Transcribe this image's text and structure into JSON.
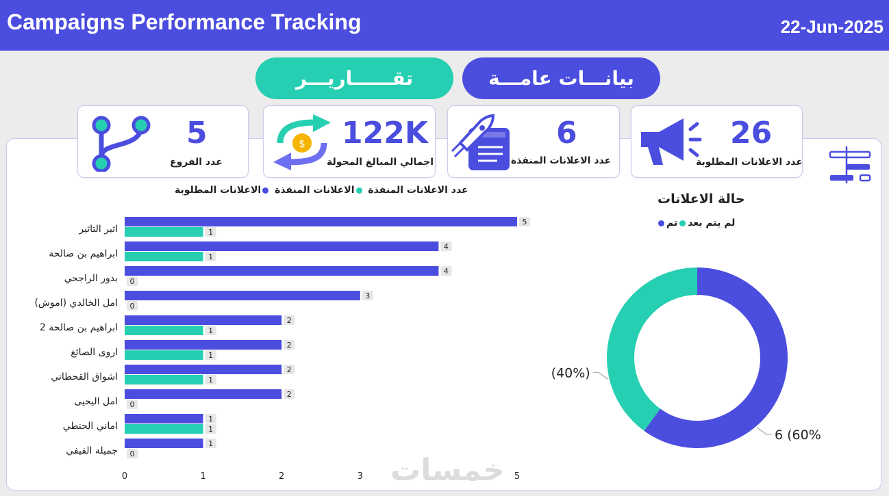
{
  "header": {
    "title": "Campaigns Performance Tracking",
    "date": "22-Jun-2025"
  },
  "nav": {
    "reports_label": "تقــــــاريـــر",
    "overview_label": "بيانـــات عامـــة"
  },
  "kpis": {
    "branches": {
      "value": "5",
      "label": "عدد الفروع"
    },
    "amounts": {
      "value": "122K",
      "label": "اجمالي المبالغ المحولة"
    },
    "executed": {
      "value": "6",
      "label": "عدد الاعلانات المنفذة"
    },
    "requested": {
      "value": "26",
      "label": "عدد الاعلانات المطلوبة"
    }
  },
  "bar_legend": {
    "title": "عدد الاعلانات المنفذة",
    "requested": "الاعلانات المطلوبة",
    "executed": "الاعلانات المنفذة"
  },
  "donut": {
    "title": "حالة الاعلانات",
    "legend_pending": "لم يتم بعد",
    "legend_done": "تم"
  },
  "colors": {
    "primary": "#4b4ddf",
    "accent": "#26cfb1"
  },
  "watermark": "خمسات",
  "chart_data": [
    {
      "type": "bar",
      "orientation": "horizontal",
      "categories": [
        "اثير التاثير",
        "ابراهيم بن صالحة",
        "بدور الراجحي",
        "امل الخالدي (اموش)",
        "ابراهيم بن صالحة 2",
        "اروى الصائغ",
        "اشواق القحطاني",
        "امل اليحيى",
        "اماني الحنطي",
        "جميلة الفيفي"
      ],
      "series": [
        {
          "name": "الاعلانات المطلوبة",
          "values": [
            5,
            4,
            4,
            3,
            2,
            2,
            2,
            2,
            1,
            1
          ]
        },
        {
          "name": "الاعلانات المنفذة",
          "values": [
            1,
            1,
            0,
            0,
            1,
            1,
            1,
            0,
            1,
            0
          ]
        }
      ],
      "xticks": [
        "0",
        "1",
        "2",
        "3",
        "4",
        "5"
      ],
      "xlim": [
        0,
        5
      ],
      "legend_position": "top"
    },
    {
      "type": "pie",
      "style": "donut",
      "title": "حالة الاعلانات",
      "slices": [
        {
          "name": "تم",
          "value": 6,
          "label": "6 (60%)"
        },
        {
          "name": "لم يتم بعد",
          "value": 4,
          "label": "4 (40%)"
        }
      ]
    }
  ]
}
